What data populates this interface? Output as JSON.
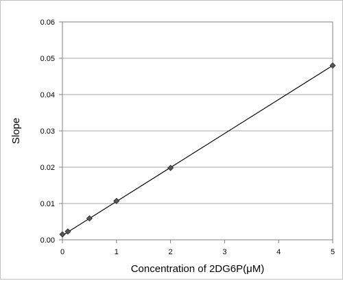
{
  "chart_data": {
    "type": "scatter",
    "title": "",
    "xlabel": "Concentration of 2DG6P(μM)",
    "ylabel": "Slope",
    "xlim": [
      0,
      5
    ],
    "ylim": [
      0,
      0.06
    ],
    "x_ticks": [
      "0",
      "1",
      "2",
      "3",
      "4",
      "5"
    ],
    "y_ticks": [
      "0.00",
      "0.01",
      "0.02",
      "0.03",
      "0.04",
      "0.05",
      "0.06"
    ],
    "grid": "horizontal",
    "legend": "none",
    "marker": "diamond",
    "marker_color": "#555555",
    "trendline": {
      "type": "linear",
      "color": "#000000",
      "from": [
        0,
        0.0012
      ],
      "to": [
        5,
        0.048
      ]
    },
    "series": [
      {
        "x": [
          0,
          0.1,
          0.5,
          1,
          2,
          5
        ],
        "y": [
          0.0015,
          0.0023,
          0.0059,
          0.0107,
          0.0198,
          0.048
        ]
      }
    ]
  }
}
